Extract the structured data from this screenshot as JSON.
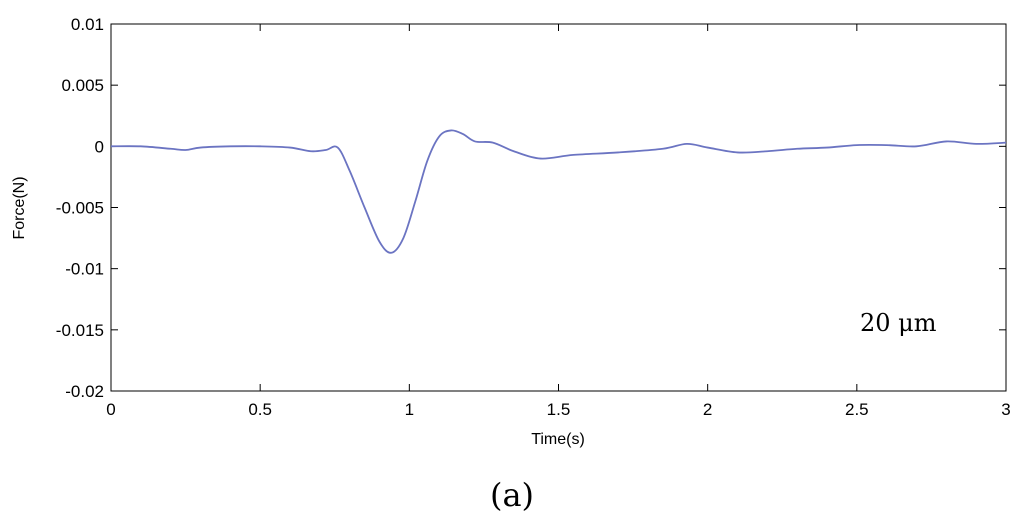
{
  "chart_data": {
    "type": "line",
    "title": "",
    "xlabel": "Time(s)",
    "ylabel": "Force(N)",
    "xlim": [
      0,
      3
    ],
    "ylim": [
      -0.02,
      0.01
    ],
    "x_ticks": [
      0,
      0.5,
      1,
      1.5,
      2,
      2.5,
      3
    ],
    "x_tick_labels": [
      "0",
      "0.5",
      "1",
      "1.5",
      "2",
      "2.5",
      "3"
    ],
    "y_ticks": [
      0.01,
      0.005,
      0,
      -0.005,
      -0.01,
      -0.015,
      -0.02
    ],
    "y_tick_labels": [
      "0.01",
      "0.005",
      "0",
      "-0.005",
      "-0.01",
      "-0.015",
      "-0.02"
    ],
    "grid": false,
    "annotation": "20 μm",
    "series": [
      {
        "color": "#6b74c2",
        "x": [
          0,
          0.1,
          0.2,
          0.25,
          0.3,
          0.4,
          0.5,
          0.6,
          0.67,
          0.72,
          0.76,
          0.8,
          0.85,
          0.9,
          0.94,
          0.98,
          1.02,
          1.06,
          1.1,
          1.14,
          1.18,
          1.22,
          1.28,
          1.35,
          1.44,
          1.55,
          1.7,
          1.85,
          1.93,
          2.0,
          2.1,
          2.2,
          2.3,
          2.4,
          2.5,
          2.6,
          2.7,
          2.8,
          2.9,
          3.0
        ],
        "y": [
          0.0,
          0.0,
          -0.0002,
          -0.0003,
          -0.0001,
          0.0,
          0.0,
          -0.0001,
          -0.0004,
          -0.0003,
          -0.0001,
          -0.002,
          -0.005,
          -0.0078,
          -0.0087,
          -0.0075,
          -0.0045,
          -0.0012,
          0.0008,
          0.0013,
          0.001,
          0.0004,
          0.0003,
          -0.0004,
          -0.001,
          -0.0007,
          -0.0005,
          -0.0002,
          0.0002,
          -0.0001,
          -0.0005,
          -0.0004,
          -0.0002,
          -0.0001,
          0.0001,
          0.0001,
          0.0,
          0.0004,
          0.0002,
          0.0003
        ]
      }
    ]
  },
  "caption": "(a)"
}
